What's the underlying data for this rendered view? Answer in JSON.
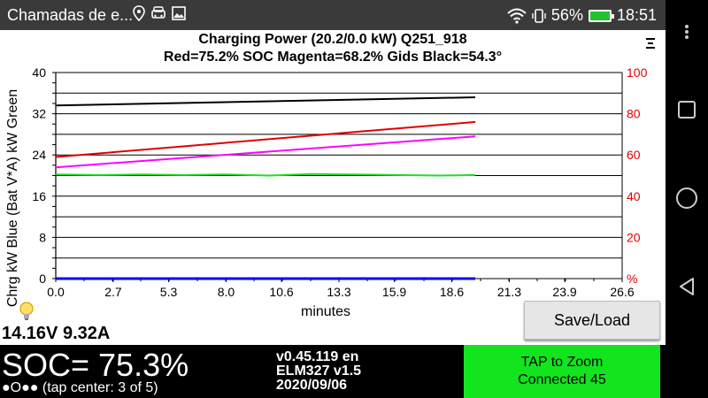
{
  "statusbar": {
    "app_title": "Chamadas de e...",
    "battery_percent": "56%",
    "time": "18:51",
    "icons": [
      "location-icon",
      "car-icon",
      "image-icon",
      "wifi-icon",
      "vibrate-icon",
      "battery-charging-icon"
    ]
  },
  "header": {
    "title": "Charging Power (20.2/0.0 kW)   Q251_918",
    "subtitle": "Red=75.2% SOC    Magenta=68.2% Gids    Black=54.3°"
  },
  "chart_data": {
    "type": "line",
    "xlabel": "minutes",
    "ylabel": "Chrg kW Blue  (Bat V*A) kW Green",
    "x_ticks": [
      "0.0",
      "2.7",
      "5.3",
      "8.0",
      "10.6",
      "13.3",
      "15.9",
      "18.6",
      "21.3",
      "23.9",
      "26.6"
    ],
    "xlim": [
      0,
      26.6
    ],
    "y_left_ticks": [
      "0",
      "8",
      "16",
      "24",
      "32",
      "40"
    ],
    "ylim_left": [
      0,
      40
    ],
    "y_right_ticks": [
      "%",
      "20",
      "40",
      "60",
      "80",
      "100"
    ],
    "ylim_right": [
      0,
      100
    ],
    "grid": true,
    "series": [
      {
        "color": "#000000",
        "axis": "right",
        "x": [
          0,
          19.7
        ],
        "values": [
          84,
          88
        ]
      },
      {
        "color": "#e00000",
        "axis": "right",
        "x": [
          0,
          19.7
        ],
        "values": [
          59,
          76
        ]
      },
      {
        "color": "#ff00ff",
        "axis": "right",
        "x": [
          0,
          19.7
        ],
        "values": [
          54,
          69
        ]
      },
      {
        "color": "#22dd22",
        "axis": "left",
        "x": [
          0,
          2,
          4,
          6,
          8,
          10,
          12,
          14,
          16,
          18,
          19.7
        ],
        "values": [
          20.2,
          20.1,
          20.2,
          20.1,
          20.2,
          20.0,
          20.3,
          20.2,
          20.1,
          20.0,
          20.1
        ]
      },
      {
        "color": "#0000ff",
        "axis": "left",
        "x": [
          0,
          19.7
        ],
        "values": [
          0,
          0
        ]
      }
    ]
  },
  "readout": {
    "voltage_current": "14.16V 9.32A"
  },
  "buttons": {
    "save_load": "Save/Load"
  },
  "bottom": {
    "soc": "SOC= 75.3%",
    "tap_info": "●O●● (tap center: 3 of 5)",
    "version_line1": "v0.45.119 en",
    "version_line2": "ELM327 v1.5",
    "version_line3": "2020/09/06",
    "zoom_line1": "TAP to Zoom",
    "zoom_line2": "Connected 45"
  }
}
